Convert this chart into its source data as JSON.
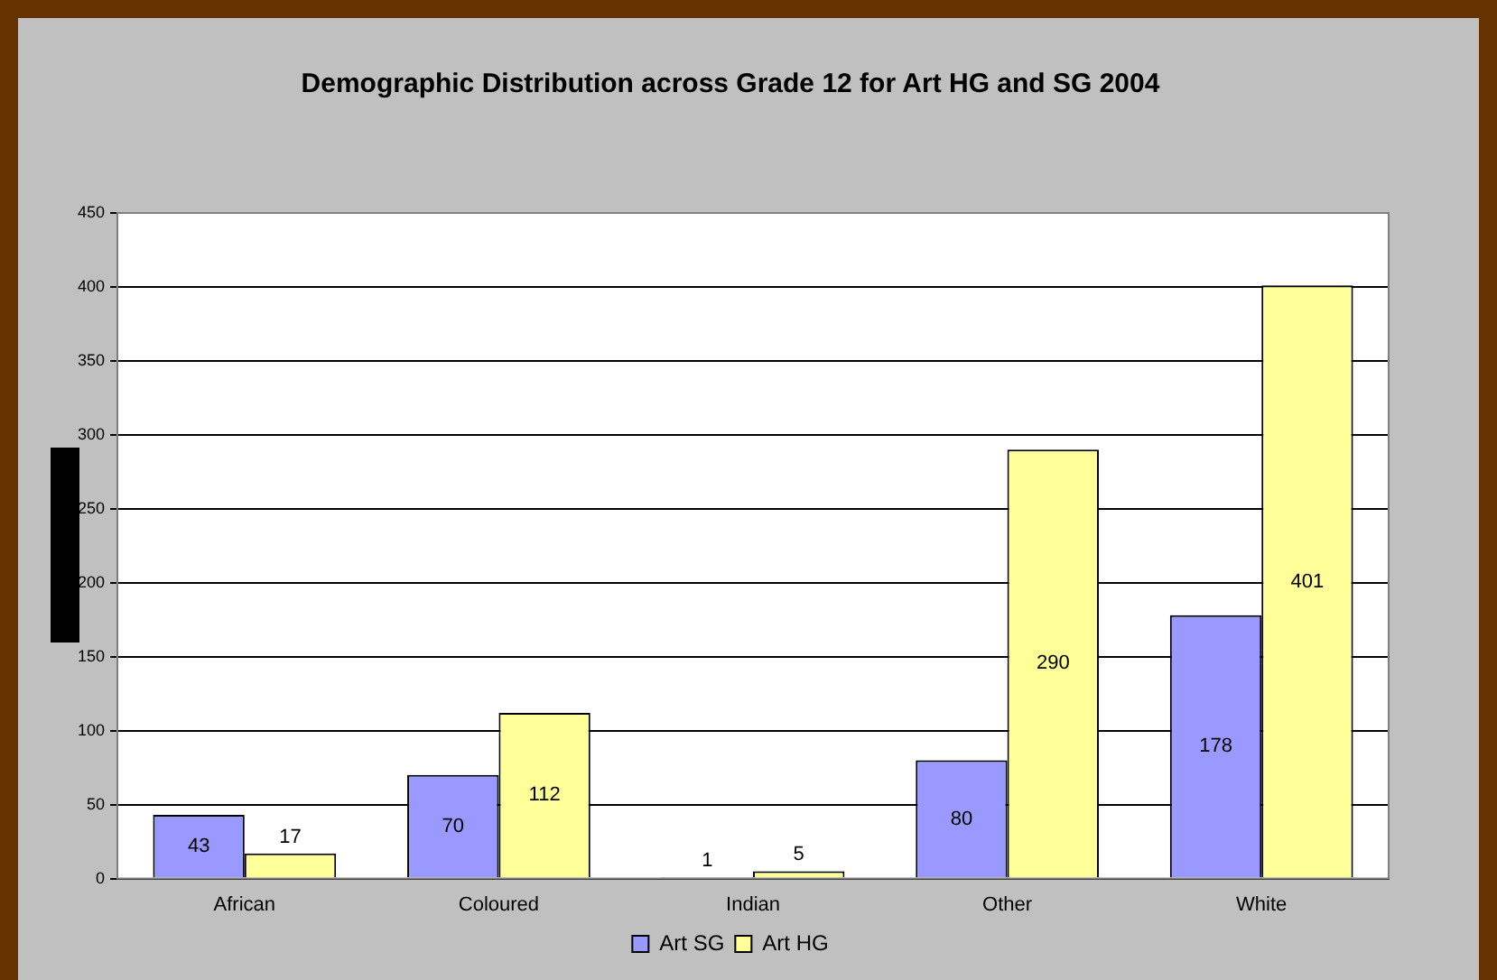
{
  "chart_data": {
    "type": "bar",
    "title": "Demographic Distribution across Grade 12 for Art HG and SG 2004",
    "categories": [
      "African",
      "Coloured",
      "Indian",
      "Other",
      "White"
    ],
    "series": [
      {
        "name": "Art SG",
        "color": "#9999ff",
        "values": [
          43,
          70,
          1,
          80,
          178
        ]
      },
      {
        "name": "Art HG",
        "color": "#ffff99",
        "values": [
          17,
          112,
          5,
          290,
          401
        ]
      }
    ],
    "ylim": [
      0,
      450
    ],
    "yticks": [
      0,
      50,
      100,
      150,
      200,
      250,
      300,
      350,
      400,
      450
    ],
    "grid": "y",
    "legend": "bottom",
    "data_labels": true
  }
}
